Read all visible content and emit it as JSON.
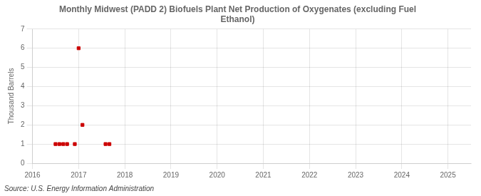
{
  "chart_data": {
    "type": "scatter",
    "title": "Monthly Midwest (PADD 2) Biofuels Plant Net Production of Oxygenates (excluding Fuel\nEthanol)",
    "ylabel": "Thousand Barrels",
    "source": "Source: U.S. Energy Information Administration",
    "x": [
      2016.5,
      2016.583,
      2016.667,
      2016.75,
      2016.917,
      2017.0,
      2017.083,
      2017.583,
      2017.667
    ],
    "values": [
      1,
      1,
      1,
      1,
      1,
      6,
      2,
      1,
      1
    ],
    "color": "#cc0000",
    "marker": "square",
    "xlim": [
      2016,
      2025.5
    ],
    "ylim": [
      0,
      7
    ],
    "xticks": [
      2016,
      2017,
      2018,
      2019,
      2020,
      2021,
      2022,
      2023,
      2024,
      2025
    ],
    "yticks": [
      0,
      1,
      2,
      3,
      4,
      5,
      6,
      7
    ],
    "grid": true
  }
}
